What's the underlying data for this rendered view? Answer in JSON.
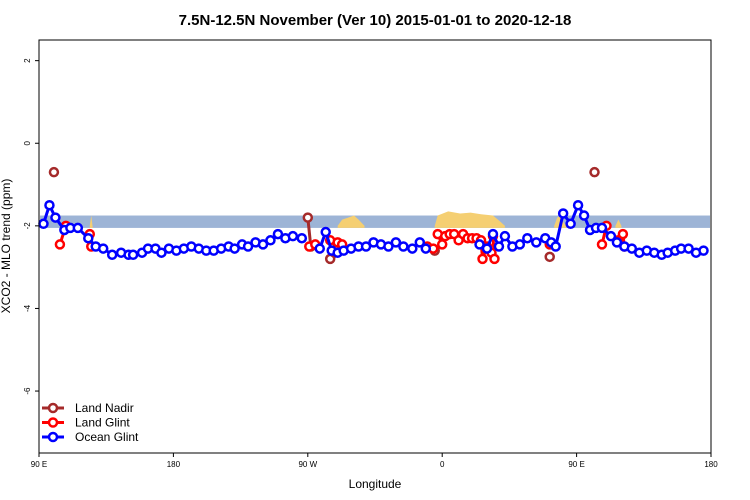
{
  "chart_data": {
    "type": "line",
    "title": "7.5N-12.5N November (Ver 10)   2015-01-01 to 2020-12-18",
    "xlabel": "Longitude",
    "ylabel": "XCO2 - MLO trend (ppm)",
    "x_ticks": [
      {
        "value": 90,
        "label": "90 E"
      },
      {
        "value": 180,
        "label": "180"
      },
      {
        "value": 270,
        "label": "90 W"
      },
      {
        "value": 360,
        "label": "0"
      },
      {
        "value": 450,
        "label": "90 E"
      },
      {
        "value": 540,
        "label": "180"
      }
    ],
    "y_ticks": [
      {
        "value": 2,
        "label": "2"
      },
      {
        "value": 0,
        "label": "0"
      },
      {
        "value": -2,
        "label": "-2"
      },
      {
        "value": -4,
        "label": "-4"
      },
      {
        "value": -6,
        "label": "-6"
      }
    ],
    "xlim": [
      90,
      540
    ],
    "ylim": [
      -7.5,
      2.5
    ],
    "grid": false,
    "legend_position": "bottom-left",
    "background_band": {
      "y_range": [
        -2.05,
        -1.75
      ],
      "color": "#9db4d6"
    },
    "land_fill": {
      "color": "#f5cf72",
      "segments": [
        [
          [
            124,
            -2.0
          ],
          [
            125,
            -1.75
          ],
          [
            126,
            -2.05
          ]
        ],
        [
          [
            290,
            -2.0
          ],
          [
            293,
            -1.85
          ],
          [
            297,
            -1.8
          ],
          [
            301,
            -1.75
          ],
          [
            304,
            -1.85
          ],
          [
            308,
            -2.0
          ]
        ],
        [
          [
            355,
            -2.0
          ],
          [
            357,
            -1.75
          ],
          [
            364,
            -1.65
          ],
          [
            372,
            -1.7
          ],
          [
            379,
            -1.68
          ],
          [
            386,
            -1.72
          ],
          [
            394,
            -1.75
          ],
          [
            399,
            -1.9
          ],
          [
            402,
            -2.0
          ]
        ],
        [
          [
            435,
            -2.0
          ],
          [
            437,
            -1.8
          ],
          [
            439,
            -1.75
          ],
          [
            441,
            -1.9
          ],
          [
            443,
            -2.0
          ]
        ],
        [
          [
            476,
            -2.0
          ],
          [
            478,
            -1.85
          ],
          [
            480,
            -2.0
          ]
        ]
      ]
    },
    "series": [
      {
        "name": "Land Nadir",
        "color": "#a52a2a",
        "segments": [
          [
            [
              100,
              -0.7
            ]
          ],
          [
            [
              270,
              -1.8
            ],
            [
              272,
              -2.5
            ]
          ],
          [
            [
              285,
              -2.8
            ],
            [
              288,
              -2.65
            ],
            [
              290,
              -2.5
            ]
          ],
          [
            [
              355,
              -2.6
            ]
          ],
          [
            [
              432,
              -2.75
            ]
          ],
          [
            [
              462,
              -0.7
            ]
          ]
        ]
      },
      {
        "name": "Land Glint",
        "color": "#ff0000",
        "segments": [
          [
            [
              104,
              -2.45
            ],
            [
              108,
              -2.0
            ]
          ],
          [
            [
              124,
              -2.2
            ],
            [
              125,
              -2.5
            ]
          ],
          [
            [
              271,
              -2.5
            ],
            [
              275,
              -2.45
            ]
          ],
          [
            [
              285,
              -2.35
            ],
            [
              290,
              -2.4
            ],
            [
              293,
              -2.45
            ]
          ],
          [
            [
              350,
              -2.5
            ],
            [
              354,
              -2.55
            ]
          ],
          [
            [
              357,
              -2.2
            ],
            [
              360,
              -2.45
            ],
            [
              362,
              -2.25
            ],
            [
              365,
              -2.2
            ],
            [
              368,
              -2.2
            ],
            [
              371,
              -2.35
            ],
            [
              374,
              -2.2
            ],
            [
              377,
              -2.3
            ],
            [
              380,
              -2.3
            ],
            [
              383,
              -2.3
            ],
            [
              386,
              -2.35
            ],
            [
              387,
              -2.8
            ],
            [
              390,
              -2.5
            ],
            [
              393,
              -2.65
            ]
          ],
          [
            [
              394,
              -2.25
            ],
            [
              395,
              -2.8
            ]
          ],
          [
            [
              432,
              -2.45
            ]
          ],
          [
            [
              467,
              -2.45
            ],
            [
              470,
              -2.0
            ]
          ],
          [
            [
              478,
              -2.35
            ],
            [
              481,
              -2.2
            ],
            [
              482,
              -2.5
            ]
          ]
        ]
      },
      {
        "name": "Ocean Glint",
        "color": "#0000ff",
        "segments": [
          [
            [
              93,
              -1.95
            ],
            [
              97,
              -1.5
            ],
            [
              101,
              -1.8
            ],
            [
              107,
              -2.1
            ],
            [
              111,
              -2.05
            ],
            [
              116,
              -2.05
            ],
            [
              123,
              -2.3
            ],
            [
              128,
              -2.5
            ],
            [
              133,
              -2.55
            ],
            [
              139,
              -2.7
            ],
            [
              145,
              -2.65
            ],
            [
              150,
              -2.7
            ],
            [
              153,
              -2.7
            ],
            [
              159,
              -2.65
            ],
            [
              163,
              -2.55
            ],
            [
              168,
              -2.55
            ],
            [
              172,
              -2.65
            ],
            [
              177,
              -2.55
            ],
            [
              182,
              -2.6
            ],
            [
              187,
              -2.55
            ],
            [
              192,
              -2.5
            ],
            [
              197,
              -2.55
            ],
            [
              202,
              -2.6
            ],
            [
              207,
              -2.6
            ],
            [
              212,
              -2.55
            ],
            [
              217,
              -2.5
            ],
            [
              221,
              -2.55
            ],
            [
              226,
              -2.45
            ],
            [
              230,
              -2.5
            ],
            [
              235,
              -2.4
            ],
            [
              240,
              -2.45
            ],
            [
              245,
              -2.35
            ],
            [
              250,
              -2.2
            ],
            [
              255,
              -2.3
            ],
            [
              260,
              -2.25
            ],
            [
              266,
              -2.3
            ]
          ],
          [
            [
              278,
              -2.55
            ],
            [
              282,
              -2.15
            ],
            [
              286,
              -2.6
            ],
            [
              290,
              -2.65
            ],
            [
              294,
              -2.6
            ],
            [
              299,
              -2.55
            ],
            [
              304,
              -2.5
            ],
            [
              309,
              -2.5
            ],
            [
              314,
              -2.4
            ],
            [
              319,
              -2.45
            ],
            [
              324,
              -2.5
            ],
            [
              329,
              -2.4
            ],
            [
              334,
              -2.5
            ],
            [
              340,
              -2.55
            ],
            [
              345,
              -2.4
            ],
            [
              349,
              -2.55
            ]
          ],
          [
            [
              385,
              -2.45
            ],
            [
              390,
              -2.55
            ],
            [
              394,
              -2.2
            ],
            [
              398,
              -2.5
            ],
            [
              402,
              -2.25
            ],
            [
              407,
              -2.5
            ],
            [
              412,
              -2.45
            ],
            [
              417,
              -2.3
            ],
            [
              423,
              -2.4
            ],
            [
              429,
              -2.3
            ],
            [
              433,
              -2.4
            ],
            [
              436,
              -2.5
            ],
            [
              441,
              -1.7
            ],
            [
              446,
              -1.95
            ],
            [
              451,
              -1.5
            ],
            [
              455,
              -1.75
            ],
            [
              459,
              -2.1
            ],
            [
              463,
              -2.05
            ],
            [
              467,
              -2.05
            ],
            [
              473,
              -2.25
            ],
            [
              477,
              -2.4
            ],
            [
              482,
              -2.5
            ],
            [
              487,
              -2.55
            ],
            [
              492,
              -2.65
            ],
            [
              497,
              -2.6
            ],
            [
              502,
              -2.65
            ],
            [
              507,
              -2.7
            ],
            [
              511,
              -2.65
            ],
            [
              516,
              -2.6
            ],
            [
              520,
              -2.55
            ],
            [
              525,
              -2.55
            ],
            [
              530,
              -2.65
            ],
            [
              535,
              -2.6
            ]
          ]
        ]
      }
    ]
  }
}
